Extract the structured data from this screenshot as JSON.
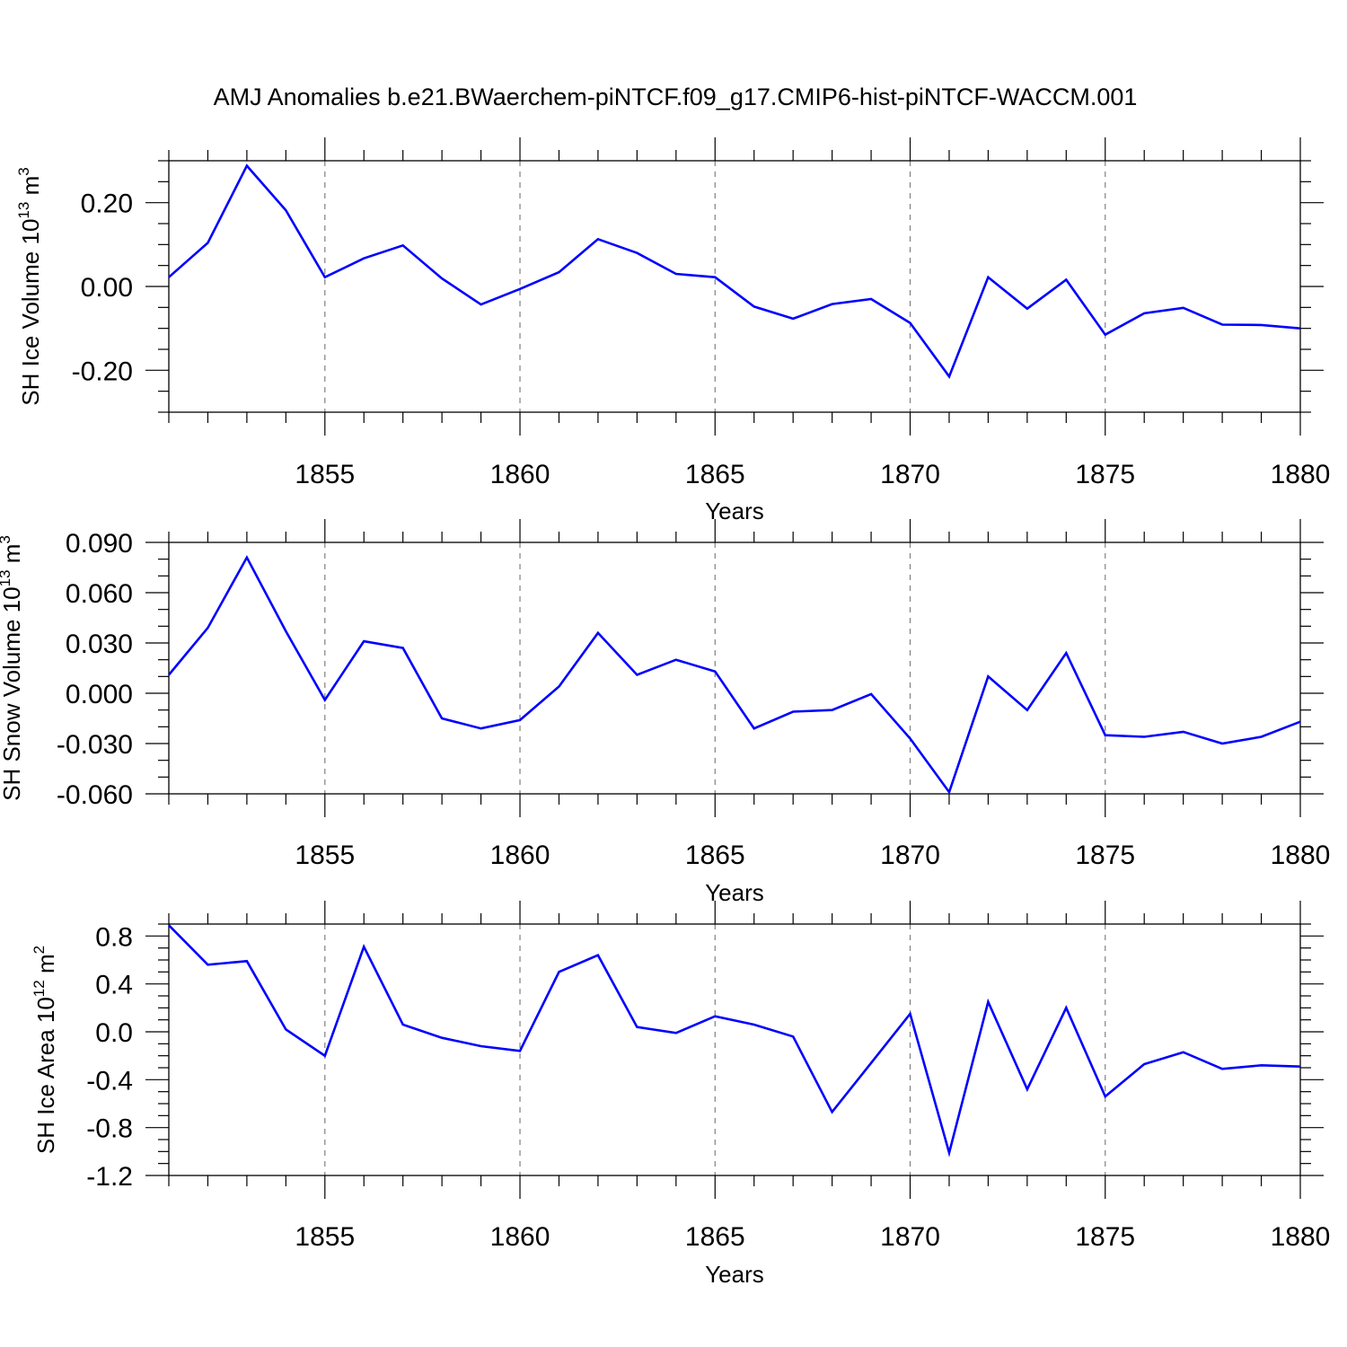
{
  "figure": {
    "title": "AMJ Anomalies b.e21.BWaerchem-piNTCF.f09_g17.CMIP6-hist-piNTCF-WACCM.001"
  },
  "colors": {
    "series": "#0000ff",
    "axes": "#000000",
    "grid": "#808080"
  },
  "chart_data": [
    {
      "type": "line",
      "ylabel": "SH Ice Volume 10",
      "ylabel_exponent": "13",
      "ylabel_unit": " m",
      "ylabel_unit_exponent": "3",
      "xlabel": "Years",
      "xlim": [
        1851,
        1880
      ],
      "ylim": [
        -0.3,
        0.3
      ],
      "x_ticks": [
        "1855",
        "1860",
        "1865",
        "1870",
        "1875",
        "1880"
      ],
      "x_tick_values": [
        1855,
        1860,
        1865,
        1870,
        1875,
        1880
      ],
      "y_ticks": [
        "0.20",
        "0.00",
        "-0.20"
      ],
      "y_tick_values": [
        0.2,
        0.0,
        -0.2
      ],
      "y_minor_step": 0.05,
      "grid": "dashed vertical at major x ticks",
      "x": [
        1851,
        1852,
        1853,
        1854,
        1855,
        1856,
        1857,
        1858,
        1859,
        1860,
        1861,
        1862,
        1863,
        1864,
        1865,
        1866,
        1867,
        1868,
        1869,
        1870,
        1871,
        1872,
        1873,
        1874,
        1875,
        1876,
        1877,
        1878,
        1879,
        1880
      ],
      "values": [
        0.022,
        0.104,
        0.288,
        0.182,
        0.022,
        0.067,
        0.098,
        0.019,
        -0.043,
        -0.006,
        0.034,
        0.113,
        0.08,
        0.03,
        0.022,
        -0.048,
        -0.077,
        -0.042,
        -0.03,
        -0.087,
        -0.215,
        0.022,
        -0.053,
        0.016,
        -0.115,
        -0.064,
        -0.051,
        -0.091,
        -0.092,
        -0.1
      ]
    },
    {
      "type": "line",
      "ylabel": "SH Snow Volume 10",
      "ylabel_exponent": "13",
      "ylabel_unit": " m",
      "ylabel_unit_exponent": "3",
      "xlabel": "Years",
      "xlim": [
        1851,
        1880
      ],
      "ylim": [
        -0.06,
        0.09
      ],
      "x_ticks": [
        "1855",
        "1860",
        "1865",
        "1870",
        "1875",
        "1880"
      ],
      "x_tick_values": [
        1855,
        1860,
        1865,
        1870,
        1875,
        1880
      ],
      "y_ticks": [
        "0.090",
        "0.060",
        "0.030",
        "0.000",
        "-0.030",
        "-0.060"
      ],
      "y_tick_values": [
        0.09,
        0.06,
        0.03,
        0.0,
        -0.03,
        -0.06
      ],
      "y_minor_step": 0.01,
      "grid": "dashed vertical at major x ticks",
      "x": [
        1851,
        1852,
        1853,
        1854,
        1855,
        1856,
        1857,
        1858,
        1859,
        1860,
        1861,
        1862,
        1863,
        1864,
        1865,
        1866,
        1867,
        1868,
        1869,
        1870,
        1871,
        1872,
        1873,
        1874,
        1875,
        1876,
        1877,
        1878,
        1879,
        1880
      ],
      "values": [
        0.011,
        0.039,
        0.081,
        0.037,
        -0.004,
        0.031,
        0.027,
        -0.015,
        -0.021,
        -0.016,
        0.004,
        0.036,
        0.011,
        0.02,
        0.013,
        -0.021,
        -0.011,
        -0.01,
        -0.0005,
        -0.027,
        -0.059,
        0.01,
        -0.01,
        0.024,
        -0.025,
        -0.026,
        -0.023,
        -0.03,
        -0.026,
        -0.017
      ]
    },
    {
      "type": "line",
      "ylabel": "SH Ice Area 10",
      "ylabel_exponent": "12",
      "ylabel_unit": " m",
      "ylabel_unit_exponent": "2",
      "xlabel": "Years",
      "xlim": [
        1851,
        1880
      ],
      "ylim": [
        -1.2,
        0.9
      ],
      "x_ticks": [
        "1855",
        "1860",
        "1865",
        "1870",
        "1875",
        "1880"
      ],
      "x_tick_values": [
        1855,
        1860,
        1865,
        1870,
        1875,
        1880
      ],
      "y_ticks": [
        "0.8",
        "0.4",
        "0.0",
        "-0.4",
        "-0.8",
        "-1.2"
      ],
      "y_tick_values": [
        0.8,
        0.4,
        0.0,
        -0.4,
        -0.8,
        -1.2
      ],
      "y_minor_step": 0.1,
      "grid": "dashed vertical at major x ticks",
      "x": [
        1851,
        1852,
        1853,
        1854,
        1855,
        1856,
        1857,
        1858,
        1859,
        1860,
        1861,
        1862,
        1863,
        1864,
        1865,
        1866,
        1867,
        1868,
        1869,
        1870,
        1871,
        1872,
        1873,
        1874,
        1875,
        1876,
        1877,
        1878,
        1879,
        1880
      ],
      "values": [
        0.89,
        0.56,
        0.59,
        0.02,
        -0.2,
        0.71,
        0.06,
        -0.05,
        -0.12,
        -0.16,
        0.5,
        0.64,
        0.04,
        -0.01,
        0.13,
        0.06,
        -0.04,
        -0.67,
        -0.26,
        0.15,
        -1.01,
        0.25,
        -0.48,
        0.2,
        -0.54,
        -0.27,
        -0.17,
        -0.31,
        -0.28,
        -0.29
      ]
    }
  ]
}
